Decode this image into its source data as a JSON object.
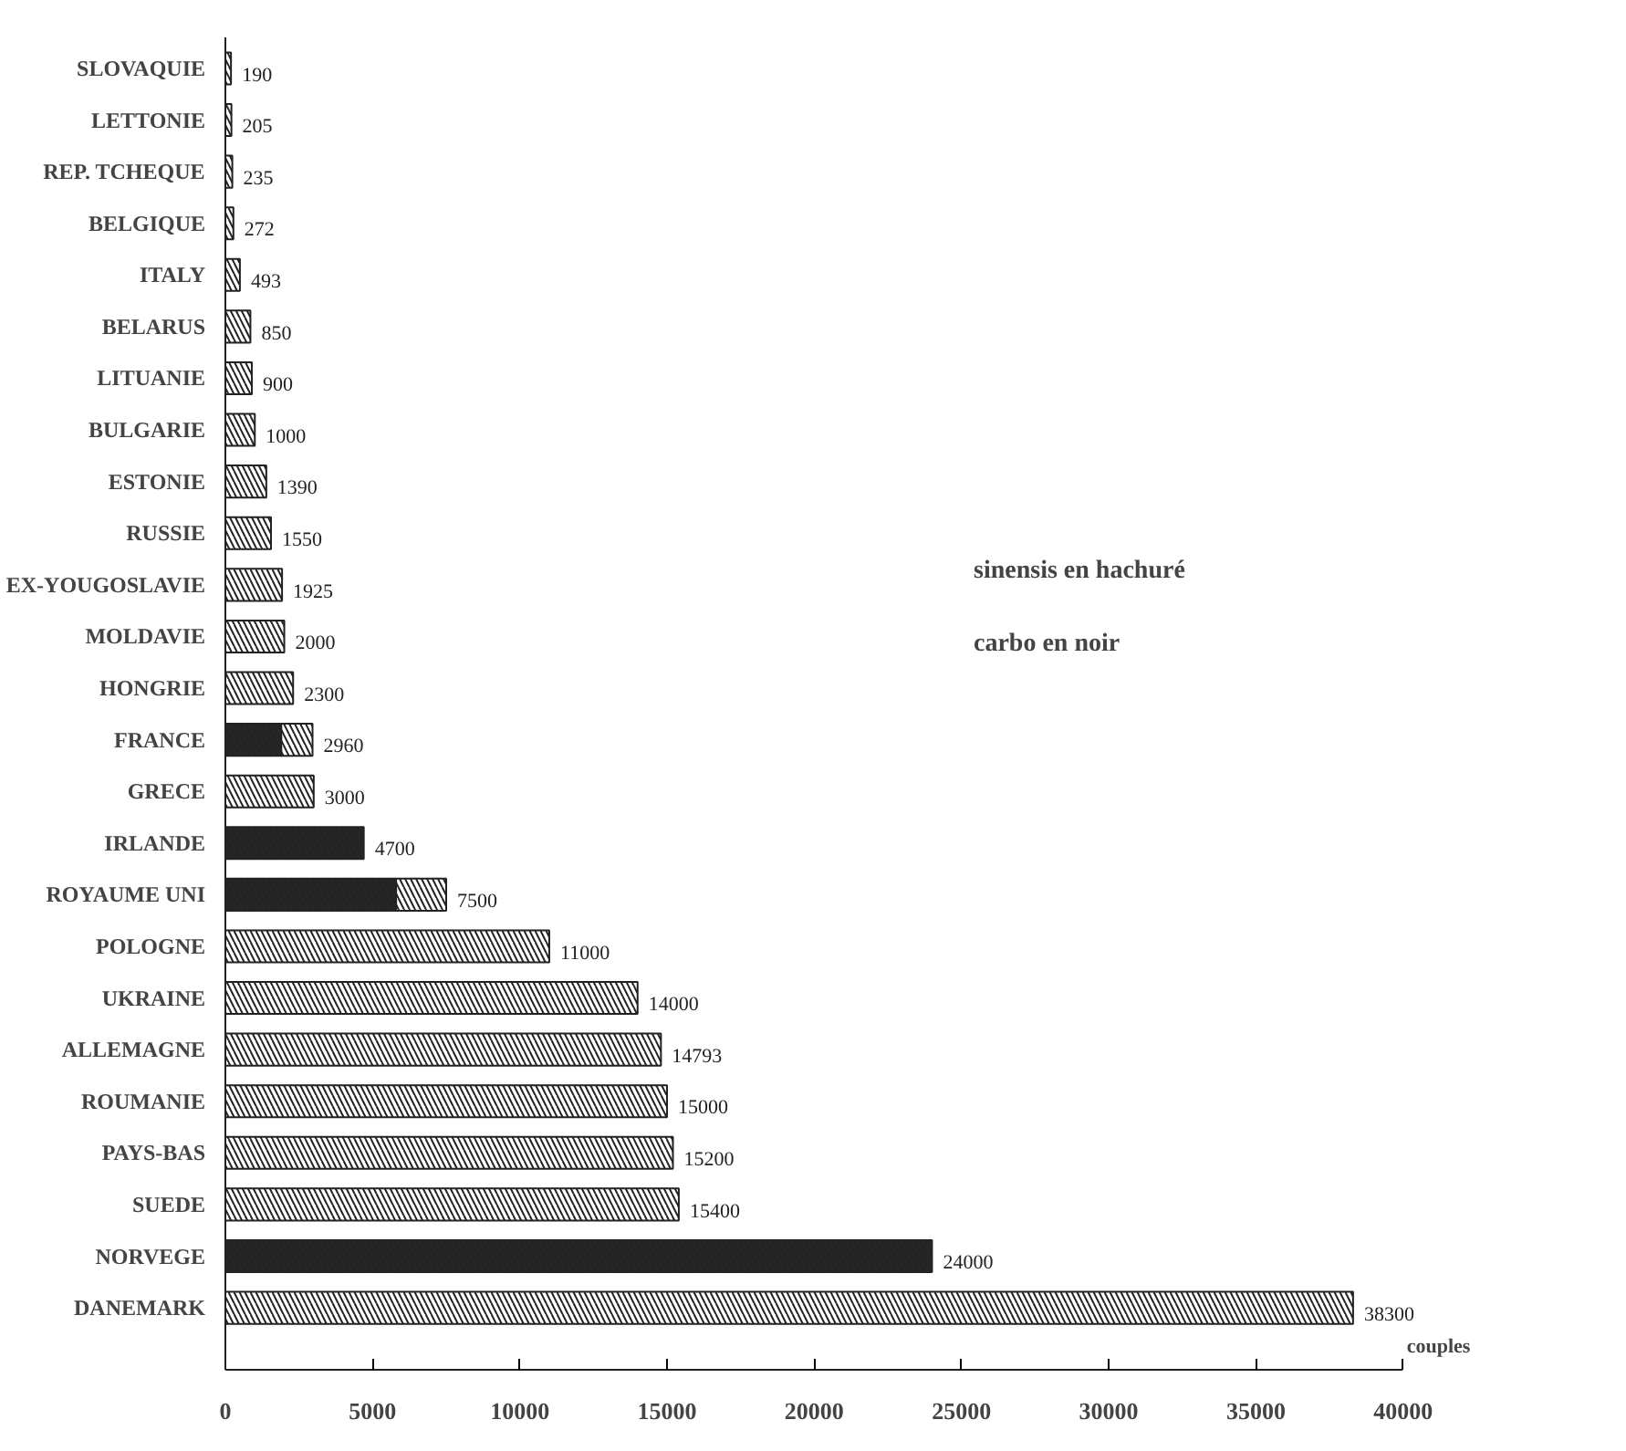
{
  "chart_data": {
    "type": "bar",
    "orientation": "horizontal",
    "stacked": true,
    "xlabel": "couples",
    "categories": [
      "SLOVAQUIE",
      "LETTONIE",
      "REP. TCHEQUE",
      "BELGIQUE",
      "ITALY",
      "BELARUS",
      "LITUANIE",
      "BULGARIE",
      "ESTONIE",
      "RUSSIE",
      "EX-YOUGOSLAVIE",
      "MOLDAVIE",
      "HONGRIE",
      "FRANCE",
      "GRECE",
      "IRLANDE",
      "ROYAUME UNI",
      "POLOGNE",
      "UKRAINE",
      "ALLEMAGNE",
      "ROUMANIE",
      "PAYS-BAS",
      "SUEDE",
      "NORVEGE",
      "DANEMARK"
    ],
    "series": [
      {
        "color": "#262626",
        "values": [
          null,
          null,
          null,
          null,
          null,
          null,
          null,
          null,
          null,
          null,
          null,
          null,
          null,
          1900,
          null,
          4700,
          5800,
          null,
          null,
          null,
          null,
          null,
          null,
          24000,
          null
        ]
      },
      {
        "color": "#ffffff",
        "values": [
          190,
          205,
          235,
          272,
          493,
          850,
          900,
          1000,
          1390,
          1550,
          1925,
          2000,
          2300,
          1060,
          3000,
          null,
          1700,
          11000,
          14000,
          14793,
          15000,
          15200,
          15400,
          null,
          38300
        ]
      }
    ],
    "totals": [
      "190",
      "205",
      "235",
      "272",
      "493",
      "850",
      "900",
      "1000",
      "1390",
      "1550",
      "1925",
      "2000",
      "2300",
      "2960",
      "3000",
      "4700",
      "7500",
      "11000",
      "14000",
      "14793",
      "15000",
      "15200",
      "15400",
      "24000",
      "38300"
    ],
    "xlim": [
      0,
      40000
    ],
    "xticks": [
      0,
      5000,
      10000,
      15000,
      20000,
      25000,
      30000,
      35000,
      40000
    ],
    "annotations": [
      "sinensis en hachuré",
      "carbo en noir"
    ],
    "grid": false,
    "legend": false
  }
}
